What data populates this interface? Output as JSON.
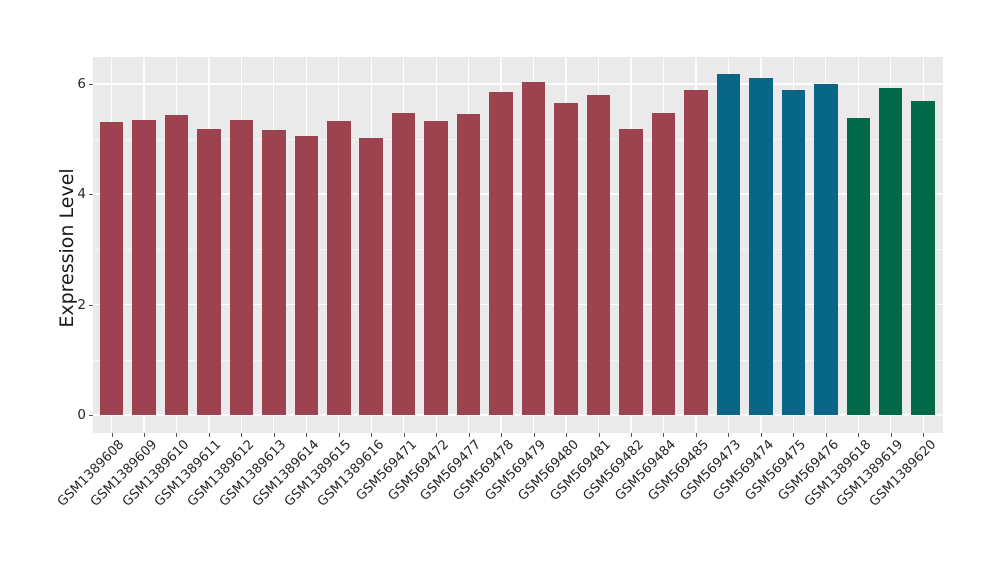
{
  "chart_data": {
    "type": "bar",
    "title": "",
    "xlabel": "",
    "ylabel": "Expression Level",
    "ylim": [
      -0.33,
      6.49
    ],
    "yticks": [
      0,
      2,
      4,
      6
    ],
    "yticks_minor": [
      1,
      3,
      5
    ],
    "grid": true,
    "legend": false,
    "categories": [
      "GSM1389608",
      "GSM1389609",
      "GSM1389610",
      "GSM1389611",
      "GSM1389612",
      "GSM1389613",
      "GSM1389614",
      "GSM1389615",
      "GSM1389616",
      "GSM569471",
      "GSM569472",
      "GSM569477",
      "GSM569478",
      "GSM569479",
      "GSM569480",
      "GSM569481",
      "GSM569482",
      "GSM569484",
      "GSM569485",
      "GSM569473",
      "GSM569474",
      "GSM569475",
      "GSM569476",
      "GSM1389618",
      "GSM1389619",
      "GSM1389620"
    ],
    "values": [
      5.3,
      5.35,
      5.44,
      5.19,
      5.34,
      5.17,
      5.05,
      5.32,
      5.02,
      5.47,
      5.32,
      5.46,
      5.86,
      6.03,
      5.65,
      5.79,
      5.19,
      5.48,
      5.88,
      6.18,
      6.1,
      5.88,
      6.0,
      5.38,
      5.92,
      5.69
    ],
    "groups": [
      "group1",
      "group1",
      "group1",
      "group1",
      "group1",
      "group1",
      "group1",
      "group1",
      "group1",
      "group1",
      "group1",
      "group1",
      "group1",
      "group1",
      "group1",
      "group1",
      "group1",
      "group1",
      "group1",
      "group2",
      "group2",
      "group2",
      "group2",
      "group3",
      "group3",
      "group3"
    ],
    "group_colors": {
      "group1": "#9D4350",
      "group2": "#0A6686",
      "group3": "#006948"
    },
    "style_colors": {
      "panel_bg": "#EAEAEA",
      "grid_major": "#FFFFFF",
      "grid_minor": "#F5F5F5",
      "text": "#262626",
      "tick": "#555555"
    }
  }
}
